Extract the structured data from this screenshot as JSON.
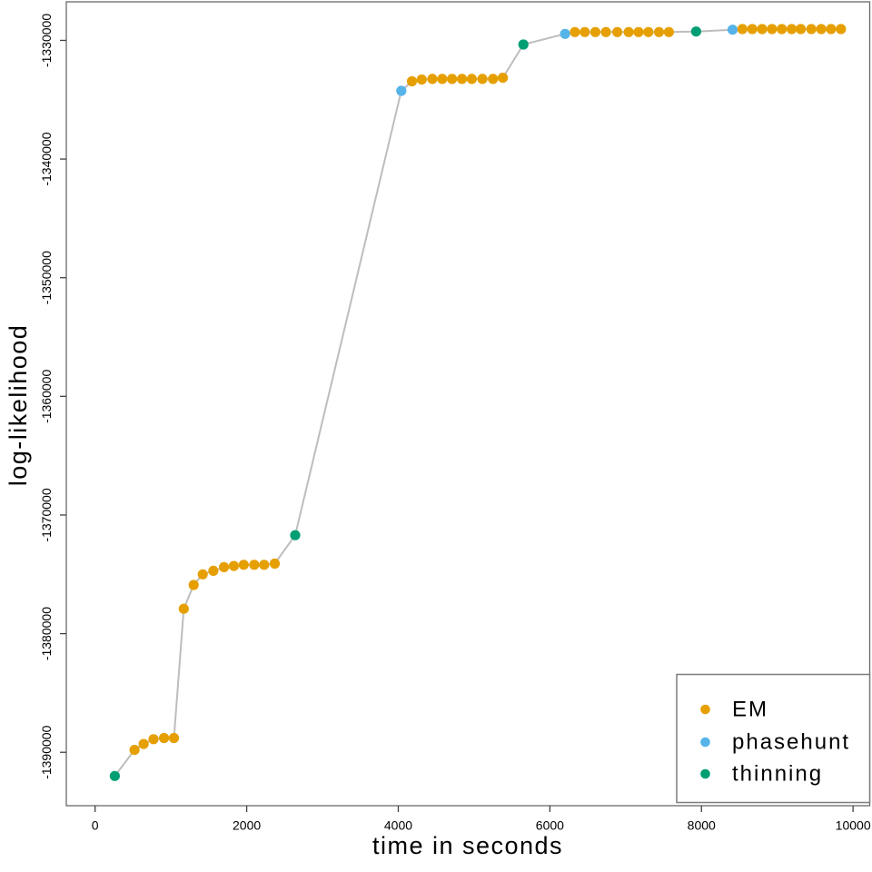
{
  "figure": {
    "background": "#ffffff"
  },
  "chart_data": {
    "type": "scatter",
    "title": "",
    "xlabel": "time in seconds",
    "ylabel": "log-likelihood",
    "xlim": [
      -380,
      10220
    ],
    "ylim": [
      -1394500,
      -1326750
    ],
    "x_ticks": [
      0,
      2000,
      4000,
      6000,
      8000,
      10000
    ],
    "y_ticks": [
      -1390000,
      -1380000,
      -1370000,
      -1360000,
      -1350000,
      -1340000,
      -1330000
    ],
    "grid": false,
    "legend_position": "bottom-right",
    "connector_line_color": "#bdbdbd",
    "series": [
      {
        "name": "EM",
        "color": "#E69F00",
        "points": [
          [
            520,
            -1389800
          ],
          [
            640,
            -1389300
          ],
          [
            770,
            -1388900
          ],
          [
            910,
            -1388800
          ],
          [
            1040,
            -1388800
          ],
          [
            1170,
            -1377900
          ],
          [
            1300,
            -1375900
          ],
          [
            1420,
            -1375000
          ],
          [
            1560,
            -1374700
          ],
          [
            1700,
            -1374400
          ],
          [
            1830,
            -1374300
          ],
          [
            1960,
            -1374200
          ],
          [
            2100,
            -1374200
          ],
          [
            2230,
            -1374200
          ],
          [
            2370,
            -1374100
          ],
          [
            4180,
            -1333450
          ],
          [
            4310,
            -1333300
          ],
          [
            4450,
            -1333250
          ],
          [
            4580,
            -1333250
          ],
          [
            4710,
            -1333250
          ],
          [
            4840,
            -1333250
          ],
          [
            4970,
            -1333250
          ],
          [
            5110,
            -1333250
          ],
          [
            5250,
            -1333250
          ],
          [
            5380,
            -1333150
          ],
          [
            6330,
            -1329300
          ],
          [
            6460,
            -1329300
          ],
          [
            6600,
            -1329300
          ],
          [
            6740,
            -1329300
          ],
          [
            6890,
            -1329300
          ],
          [
            7040,
            -1329300
          ],
          [
            7170,
            -1329300
          ],
          [
            7300,
            -1329300
          ],
          [
            7440,
            -1329300
          ],
          [
            7570,
            -1329300
          ],
          [
            8540,
            -1329050
          ],
          [
            8670,
            -1329050
          ],
          [
            8800,
            -1329050
          ],
          [
            8930,
            -1329050
          ],
          [
            9060,
            -1329050
          ],
          [
            9190,
            -1329050
          ],
          [
            9310,
            -1329050
          ],
          [
            9450,
            -1329050
          ],
          [
            9580,
            -1329050
          ],
          [
            9710,
            -1329050
          ],
          [
            9840,
            -1329050
          ]
        ]
      },
      {
        "name": "phasehunt",
        "color": "#56B4E9",
        "points": [
          [
            4040,
            -1334250
          ],
          [
            6200,
            -1329450
          ],
          [
            8410,
            -1329100
          ]
        ]
      },
      {
        "name": "thinning",
        "color": "#009E73",
        "points": [
          [
            260,
            -1392000
          ],
          [
            2640,
            -1371700
          ],
          [
            5650,
            -1330350
          ],
          [
            7930,
            -1329250
          ]
        ]
      }
    ]
  },
  "legend": {
    "items": [
      {
        "label": "EM",
        "color": "#E69F00"
      },
      {
        "label": "phasehunt",
        "color": "#56B4E9"
      },
      {
        "label": "thinning",
        "color": "#009E73"
      }
    ]
  }
}
